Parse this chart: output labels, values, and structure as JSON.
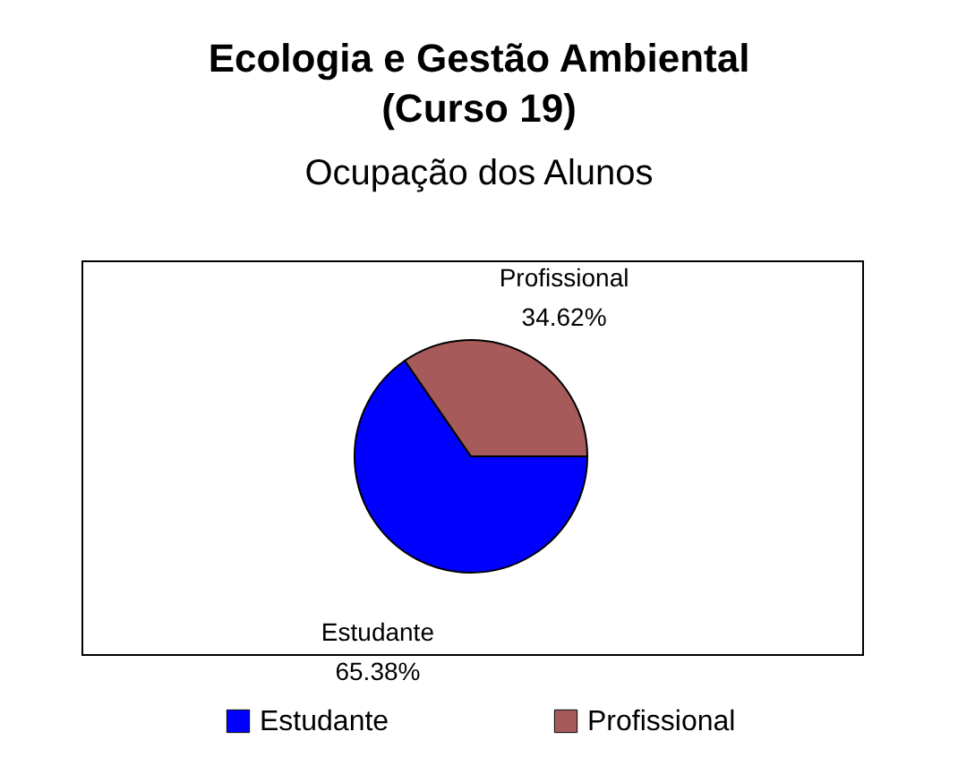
{
  "chart_data": {
    "type": "pie",
    "title": [
      "Ecologia e Gestão Ambiental",
      "(Curso 19)"
    ],
    "subtitle": "Ocupação dos Alunos",
    "categories": [
      "Estudante",
      "Profissional"
    ],
    "values": [
      65.38,
      34.62
    ],
    "colors": [
      "#0000ff",
      "#a65a5a"
    ],
    "value_labels": [
      "65.38%",
      "34.62%"
    ],
    "legend": "bottom"
  }
}
